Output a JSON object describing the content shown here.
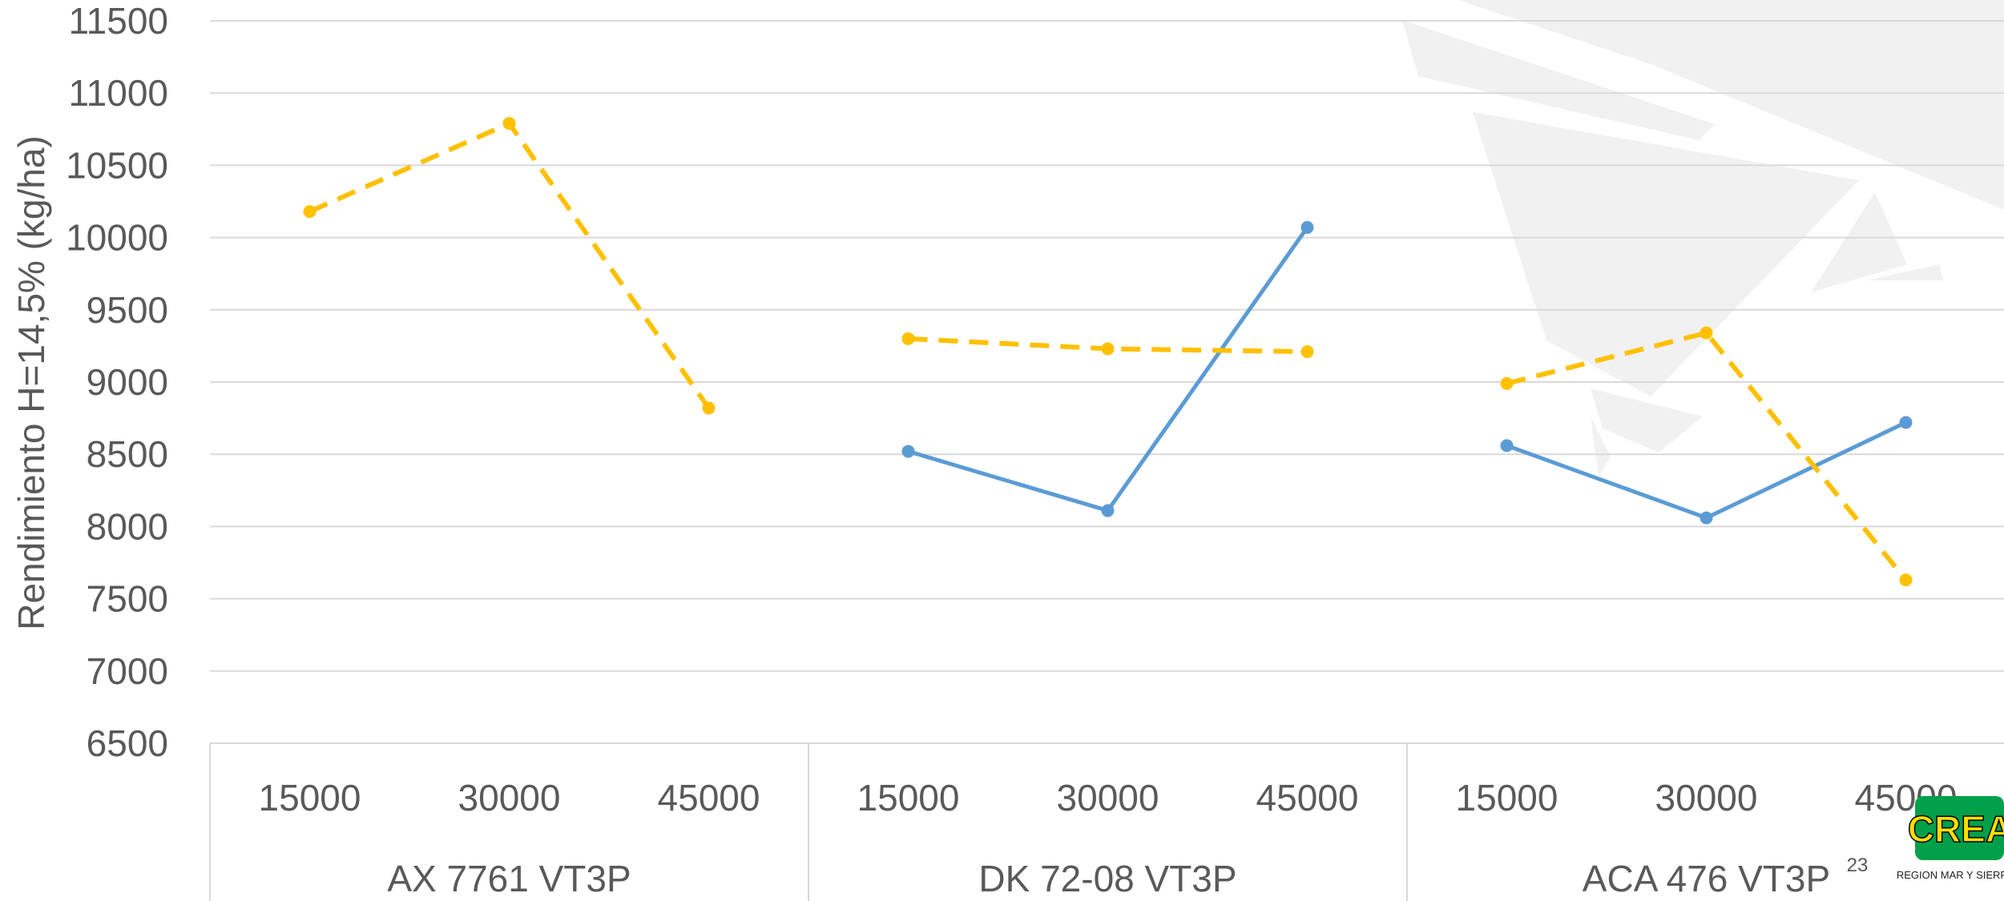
{
  "chart_data": {
    "type": "line",
    "ylabel": "Rendimiento H=14,5% (kg/ha)",
    "ylim": [
      6500,
      11500
    ],
    "ytick_step": 500,
    "grid": true,
    "groups": [
      {
        "name": "AX 7761 VT3P",
        "categories": [
          "15000",
          "30000",
          "45000"
        ]
      },
      {
        "name": "DK 72-08 VT3P",
        "categories": [
          "15000",
          "30000",
          "45000"
        ]
      },
      {
        "name": "ACA 476 VT3P",
        "categories": [
          "15000",
          "30000",
          "45000"
        ]
      }
    ],
    "series": [
      {
        "color": "#5b9bd5",
        "style": "solid",
        "values": [
          [
            null,
            null,
            null
          ],
          [
            8520,
            8110,
            10070
          ],
          [
            8560,
            8060,
            8720
          ]
        ]
      },
      {
        "color": "#ffc000",
        "style": "dashed",
        "values": [
          [
            10180,
            10790,
            8820
          ],
          [
            9300,
            9230,
            9210
          ],
          [
            8990,
            9340,
            7630
          ]
        ]
      }
    ]
  },
  "page_number": "23",
  "logo": {
    "text": "CREA",
    "subtext": "REGION MAR Y SIERRAS",
    "bg": "#00a04a",
    "fg": "#ffdd00"
  },
  "colors": {
    "grid": "#d9d9d9",
    "text": "#595959",
    "watermark": "#f1f1f1"
  }
}
